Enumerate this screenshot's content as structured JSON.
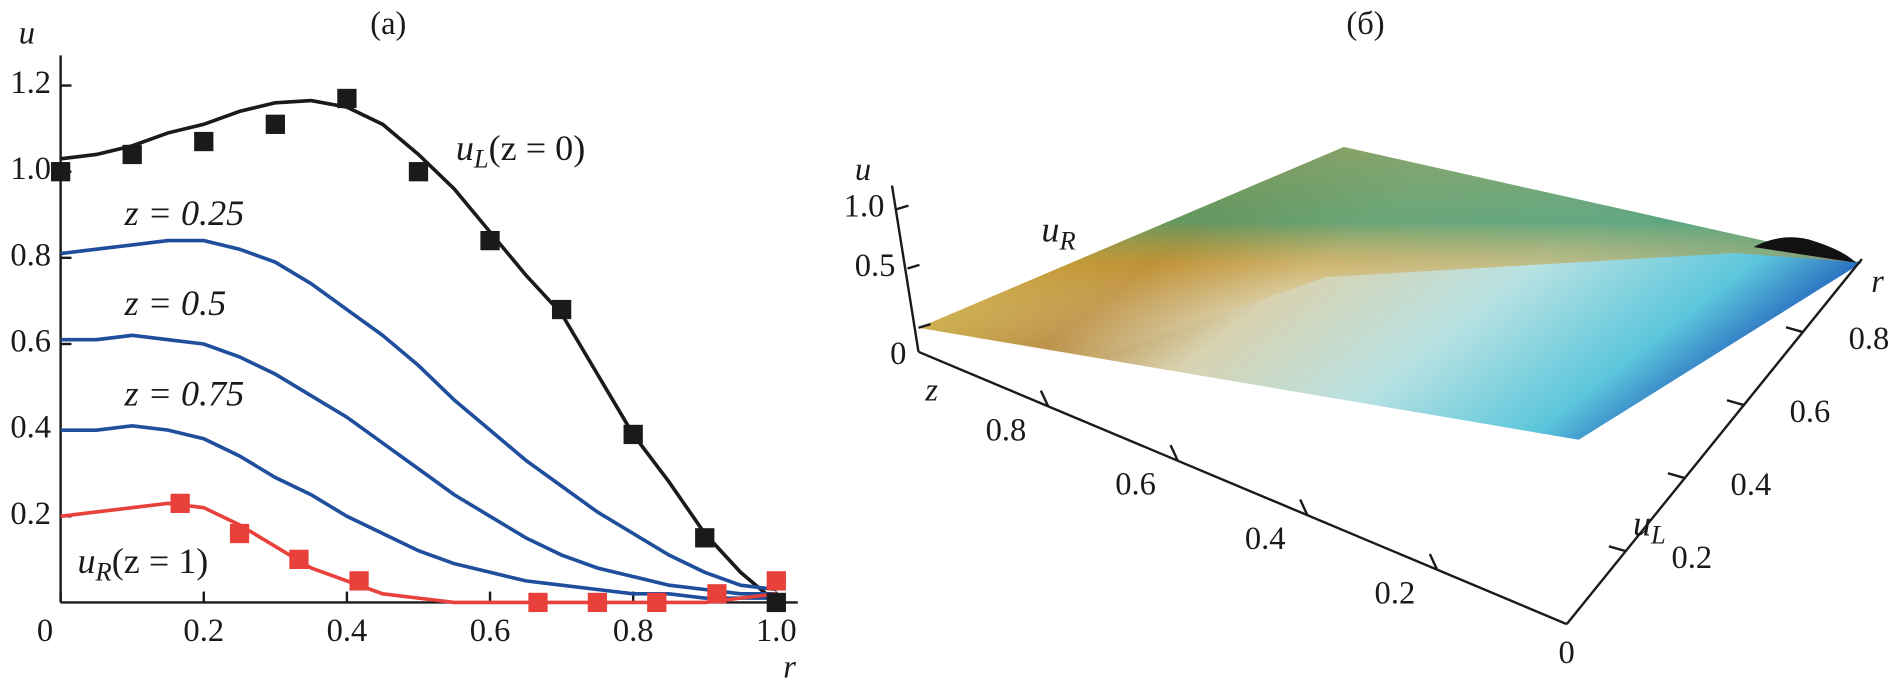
{
  "chart_data": [
    {
      "type": "line",
      "title": "(a)",
      "xlabel": "r",
      "ylabel": "u",
      "x": [
        0,
        0.05,
        0.1,
        0.15,
        0.2,
        0.25,
        0.3,
        0.35,
        0.4,
        0.45,
        0.5,
        0.55,
        0.6,
        0.65,
        0.7,
        0.75,
        0.8,
        0.85,
        0.9,
        0.95,
        1
      ],
      "series": [
        {
          "label_parts": [
            "u",
            "L",
            "(z = 0)"
          ],
          "color": "#1a1a1a",
          "values": [
            1.03,
            1.04,
            1.06,
            1.09,
            1.11,
            1.14,
            1.16,
            1.165,
            1.15,
            1.11,
            1.04,
            0.96,
            0.86,
            0.76,
            0.67,
            0.53,
            0.39,
            0.28,
            0.16,
            0.07,
            0
          ]
        },
        {
          "label_parts": [
            "z = 0.25"
          ],
          "color": "#1f4e9c",
          "values": [
            0.81,
            0.82,
            0.83,
            0.84,
            0.84,
            0.82,
            0.79,
            0.74,
            0.68,
            0.62,
            0.55,
            0.47,
            0.4,
            0.33,
            0.27,
            0.21,
            0.16,
            0.11,
            0.07,
            0.04,
            0.03
          ]
        },
        {
          "label_parts": [
            "z = 0.5"
          ],
          "color": "#1f4e9c",
          "values": [
            0.61,
            0.61,
            0.62,
            0.61,
            0.6,
            0.57,
            0.53,
            0.48,
            0.43,
            0.37,
            0.31,
            0.25,
            0.2,
            0.15,
            0.11,
            0.08,
            0.06,
            0.04,
            0.03,
            0.02,
            0.02
          ]
        },
        {
          "label_parts": [
            "z = 0.75"
          ],
          "color": "#1f4e9c",
          "values": [
            0.4,
            0.4,
            0.41,
            0.4,
            0.38,
            0.34,
            0.29,
            0.25,
            0.2,
            0.16,
            0.12,
            0.09,
            0.07,
            0.05,
            0.04,
            0.03,
            0.02,
            0.02,
            0.01,
            0.01,
            0.01
          ]
        },
        {
          "label_parts": [
            "u",
            "R",
            "(z = 1)"
          ],
          "color": "#e8413c",
          "values": [
            0.2,
            0.21,
            0.22,
            0.23,
            0.22,
            0.18,
            0.13,
            0.08,
            0.05,
            0.02,
            0.01,
            0,
            0,
            0,
            0,
            0,
            0,
            0,
            0,
            0.01,
            0.02
          ]
        }
      ],
      "points": [
        {
          "color": "#1a1a1a",
          "x": [
            0,
            0.1,
            0.2,
            0.3,
            0.4,
            0.5,
            0.6,
            0.7,
            0.8,
            0.9,
            1
          ],
          "values": [
            1.0,
            1.04,
            1.07,
            1.11,
            1.17,
            1.0,
            0.84,
            0.68,
            0.39,
            0.15,
            0
          ]
        },
        {
          "color": "#e8413c",
          "x": [
            0.167,
            0.25,
            0.333,
            0.417,
            0.667,
            0.75,
            0.833,
            0.917,
            1
          ],
          "values": [
            0.23,
            0.16,
            0.1,
            0.05,
            0,
            0,
            0,
            0.02,
            0.05
          ]
        }
      ],
      "xlim": [
        0,
        1.03
      ],
      "ylim": [
        0,
        1.27
      ],
      "xticks": [
        0,
        0.2,
        0.4,
        0.6,
        0.8,
        {
          "value": 1,
          "label": "1.0"
        }
      ],
      "yticks": [
        0.2,
        0.4,
        0.6,
        0.8,
        {
          "value": 1,
          "label": "1.0"
        },
        1.2
      ]
    },
    {
      "type": "surface",
      "title": "(б)",
      "ulabel": "u",
      "zlabel": "z",
      "rlabel": "r",
      "surface_labels": [
        [
          "u",
          "R"
        ],
        [
          "u",
          "L"
        ]
      ],
      "ulim": [
        0,
        1.2
      ],
      "uticks": [
        0,
        0.5,
        {
          "value": 1,
          "label": "1.0"
        }
      ],
      "zlim": [
        0,
        1
      ],
      "zticks": [
        0.2,
        0.4,
        0.6,
        0.8
      ],
      "rlim": [
        0,
        1
      ],
      "rticks": [
        0,
        0.2,
        0.4,
        0.6,
        0.8
      ]
    }
  ]
}
